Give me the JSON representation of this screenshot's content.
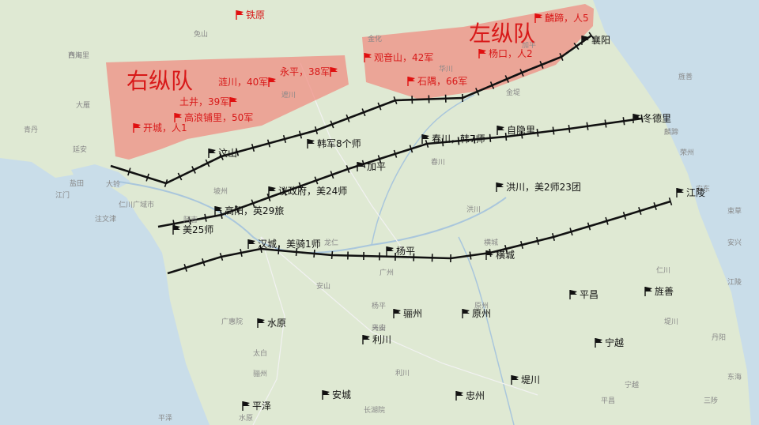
{
  "colors": {
    "land": "#dfe9d3",
    "sea": "#c9dde9",
    "zone_fill": "#f08a80",
    "front_line": "#111111",
    "red_text": "#d81818",
    "flag_black": "#111111",
    "flag_red": "#e01010"
  },
  "groups": {
    "right": "右纵队",
    "left": "左纵队"
  },
  "red_labels": {
    "tieyuan": "铁原",
    "lianchuan": "涟川，40军",
    "yongping": "永平，38军",
    "tujing": "土井，39军",
    "gaolangpuli": "高浪铺里，50军",
    "kaicheng": "开城，人1",
    "guanyinshan": "观音山，42军",
    "shiyu": "石隅，66军",
    "linti": "麟蹄，人5",
    "yangkou": "杨口，人2"
  },
  "black_labels": {
    "xiangyang": "襄阳",
    "dongdeli": "冬德里",
    "wenshan": "汶山",
    "hanjun8": "韩军8个师",
    "chunchuan": "春川，韩7师",
    "ziyinli": "自隐里",
    "jiaping": "加平",
    "yizhengfu": "议政府，美24师",
    "hongchuan": "洪川，美2师23团",
    "jiangling": "江陵",
    "gaoyang": "高阳，英29旅",
    "mei25": "美25师",
    "hancheng": "汉城，美骑1师",
    "yangping": "杨平",
    "hengcheng": "横城",
    "pingchang": "平昌",
    "jingshan": "旌善",
    "shuiyuan": "水原",
    "lizhou": "骊州",
    "yuanzhou": "原州",
    "lichuan": "利川",
    "ningyue": "宁越",
    "dichuan": "堤川",
    "zhongzhou": "忠州",
    "ancheng": "安城",
    "pingze": "平泽"
  },
  "basemap_towns": [
    "白川里",
    "大雁",
    "青丹",
    "延安",
    "盐田",
    "大铃",
    "仁川广域市",
    "坡州",
    "阿吉",
    "免山",
    "遮川",
    "金化",
    "华川",
    "春川",
    "洪川",
    "横城",
    "原州",
    "旌善",
    "平昌",
    "宁越",
    "堤川",
    "丹阳",
    "荣州",
    "安东",
    "安兴",
    "江陵",
    "东海",
    "三陟",
    "太白",
    "水原",
    "平泽",
    "天安",
    "骊州",
    "乌山",
    "利川",
    "长湖院",
    "广惠院",
    "安山",
    "龙仁",
    "广州",
    "杨平",
    "加平",
    "麟蹄",
    "束草",
    "注文津",
    "江门",
    "仁川",
    "金堤",
    "西海"
  ]
}
